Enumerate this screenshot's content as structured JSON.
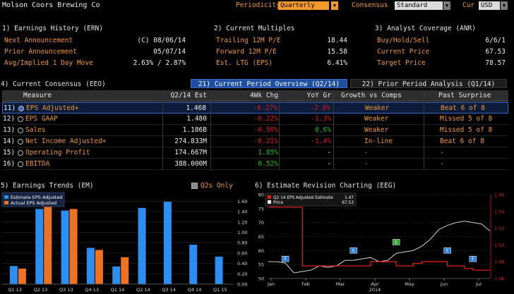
{
  "app": {
    "title": "Molson Coors Brewing Co"
  },
  "controls": {
    "periodicity_label": "Periodicity",
    "periodicity_value": "Quarterly",
    "consensus_label": "Consensus",
    "consensus_value": "Standard",
    "cur_label": "Cur",
    "cur_value": "USD"
  },
  "earnings_history": {
    "title": "1) Earnings History (ERN)",
    "rows": [
      {
        "label": "Next Announcement",
        "value": "(C)  08/06/14"
      },
      {
        "label": "Prior Announcement",
        "value": "05/07/14"
      },
      {
        "label": "Avg/Implied 1 Day Move",
        "value": "2.63% / 2.87%"
      }
    ]
  },
  "current_multiples": {
    "title": "2) Current Multiples",
    "rows": [
      {
        "label": "Trailing 12M P/E",
        "value": "18.44"
      },
      {
        "label": "Forward 12M P/E",
        "value": "15.58"
      },
      {
        "label": "Est. LTG (EPS)",
        "value": "6.41%"
      }
    ]
  },
  "analyst_coverage": {
    "title": "3) Analyst Coverage (ANR)",
    "rows": [
      {
        "label": "Buy/Hold/Sell",
        "value": "6/6/1"
      },
      {
        "label": "Current Price",
        "value": "67.53"
      },
      {
        "label": "Target Price",
        "value": "78.57"
      }
    ]
  },
  "consensus": {
    "title": "4) Current Consensus (EEO)",
    "tab_current": "21) Current Period Overview (Q2/14)",
    "tab_prior": "22) Prior Period Analysis (Q1/14)",
    "headers": [
      "Measure",
      "Q2/14 Est",
      "4Wk Chg",
      "YoY Gr",
      "Growth vs Comps",
      "Past Surprise"
    ],
    "rows": [
      {
        "num": "11)",
        "measure": "EPS Adjusted+",
        "est": "1.468",
        "chg": "-0.27%",
        "chg_color": "red",
        "yoy": "-2.8%",
        "yoy_color": "red",
        "growth": "Weaker",
        "surprise": "Beat 6 of 8",
        "selected": true
      },
      {
        "num": "12)",
        "measure": "EPS GAAP",
        "est": "1.480",
        "chg": "-0.22%",
        "chg_color": "red",
        "yoy": "-1.3%",
        "yoy_color": "red",
        "growth": "Weaker",
        "surprise": "Missed 5 of 8",
        "selected": false
      },
      {
        "num": "13)",
        "measure": "Sales",
        "est": "1.186B",
        "chg": "-0.50%",
        "chg_color": "red",
        "yoy": "0.6%",
        "yoy_color": "green",
        "growth": "Weaker",
        "surprise": "Missed 5 of 8",
        "selected": false
      },
      {
        "num": "14)",
        "measure": "Net Income Adjusted+",
        "est": "274.833M",
        "chg": "-0.21%",
        "chg_color": "red",
        "yoy": "-1.4%",
        "yoy_color": "red",
        "growth": "In-line",
        "surprise": "Beat 6 of 8",
        "selected": false
      },
      {
        "num": "15)",
        "measure": "Operating Profit",
        "est": "174.667M",
        "chg": "1.85%",
        "chg_color": "green",
        "yoy": "-",
        "yoy_color": "white",
        "growth": "-",
        "surprise": "-",
        "selected": false
      },
      {
        "num": "16)",
        "measure": "EBITDA",
        "est": "388.000M",
        "chg": "0.52%",
        "chg_color": "green",
        "yoy": "-",
        "yoy_color": "white",
        "growth": "-",
        "surprise": "-",
        "selected": false
      }
    ]
  },
  "earnings_trends": {
    "title": "5) Earnings Trends (EM)",
    "q2s_only_label": "Q2s Only"
  },
  "revision_chart": {
    "title": "6) Estimate Revision Charting (EEG)"
  },
  "chart_data": [
    {
      "type": "bar",
      "categories": [
        "Q1 13",
        "Q2 13",
        "Q3 13",
        "Q4 13",
        "Q1 14",
        "Q2 14",
        "Q3 14",
        "Q4 14",
        "Q1 15"
      ],
      "series": [
        {
          "name": "Estimate EPS Adjusted",
          "color": "#2b8ef3",
          "values": [
            0.35,
            1.45,
            1.42,
            0.7,
            0.34,
            1.47,
            1.59,
            0.76,
            0.53
          ]
        },
        {
          "name": "Actual EPS Adjusted",
          "color": "#f0711f",
          "values": [
            0.3,
            1.5,
            1.45,
            0.66,
            0.52,
            null,
            null,
            null,
            null
          ]
        }
      ],
      "ylim": [
        0,
        1.7
      ],
      "yticks": [
        "0.00",
        "0.20",
        "0.40",
        "0.60",
        "0.80",
        "1.00",
        "1.20",
        "1.40",
        "1.60"
      ],
      "legend": "top-left"
    },
    {
      "type": "line",
      "x_labels": [
        "Jan",
        "Feb",
        "Mar",
        "Apr",
        "May",
        "Jun",
        "Jul"
      ],
      "x_year": "2014",
      "series": [
        {
          "name": "Q2 14 EPS Adjusted Estimate",
          "last": "1.47",
          "color": "#e01d1d",
          "axis": "right"
        },
        {
          "name": "Price",
          "last": "67.53",
          "color": "#e8e8e8",
          "axis": "left"
        }
      ],
      "left_ticks": [
        "80",
        "75",
        "70",
        "65",
        "60",
        "55",
        "50"
      ],
      "right_ticks": [
        "1.56",
        "1.54",
        "1.52",
        "1.50",
        "1.48",
        "1.46"
      ],
      "estimate_values": [
        1.545,
        1.545,
        1.545,
        1.545,
        1.475,
        1.475,
        1.475,
        1.475,
        1.475,
        1.475,
        1.475,
        1.475,
        1.48,
        1.48,
        1.48,
        1.475,
        1.475,
        1.478,
        1.48,
        1.48,
        1.48,
        1.475,
        1.475,
        1.472,
        1.47,
        1.47,
        1.47
      ],
      "price_values": [
        56.0,
        56.0,
        55.5,
        52.0,
        52.5,
        53.0,
        54.5,
        54.0,
        54.5,
        56.5,
        56.5,
        57.0,
        57.5,
        56.0,
        56.5,
        59.0,
        59.5,
        60.0,
        61.5,
        64.0,
        67.5,
        69.0,
        70.0,
        70.5,
        70.0,
        69.5,
        67.0
      ],
      "markers": [
        {
          "label": "E",
          "color": "#2b7bd9",
          "value": 1.48,
          "pos": 2
        },
        {
          "label": "E",
          "color": "#2b7bd9",
          "value": 1.49,
          "pos": 10
        },
        {
          "label": "E",
          "color": "#2ea12e",
          "value": 1.5,
          "pos": 15
        },
        {
          "label": "E",
          "color": "#2b7bd9",
          "value": 1.49,
          "pos": 21
        },
        {
          "label": "E",
          "color": "#2b7bd9",
          "value": 1.48,
          "pos": 24
        }
      ],
      "legend": "top-left"
    }
  ]
}
